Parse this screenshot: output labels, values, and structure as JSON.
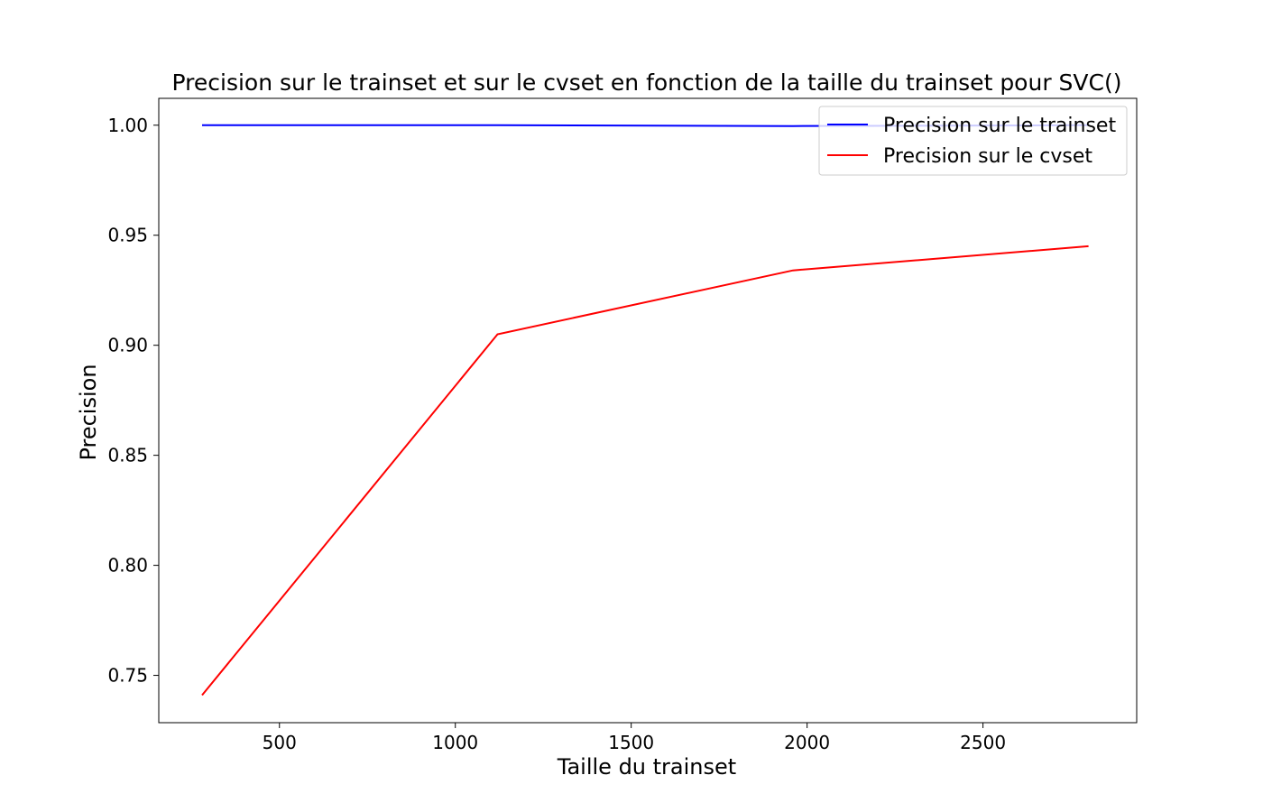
{
  "chart_data": {
    "type": "line",
    "title": "Precision sur le trainset et sur le cvset en fonction de la taille du trainset pour SVC()",
    "xlabel": "Taille du trainset",
    "ylabel": "Precision",
    "x": [
      280,
      1120,
      1960,
      2800
    ],
    "xlim": [
      157,
      2937
    ],
    "ylim": [
      0.7285,
      1.0122
    ],
    "xticks": [
      500,
      1000,
      1500,
      2000,
      2500
    ],
    "xtick_labels": [
      "500",
      "1000",
      "1500",
      "2000",
      "2500"
    ],
    "yticks": [
      0.75,
      0.8,
      0.85,
      0.9,
      0.95,
      1.0
    ],
    "ytick_labels": [
      "0.75",
      "0.80",
      "0.85",
      "0.90",
      "0.95",
      "1.00"
    ],
    "grid": false,
    "legend_position": "top-right",
    "series": [
      {
        "name": "Precision sur le trainset",
        "color": "#0000ff",
        "values": [
          1.0,
          1.0,
          0.9996,
          1.0
        ]
      },
      {
        "name": "Precision sur le cvset",
        "color": "#ff0000",
        "values": [
          0.741,
          0.905,
          0.934,
          0.945
        ]
      }
    ]
  }
}
